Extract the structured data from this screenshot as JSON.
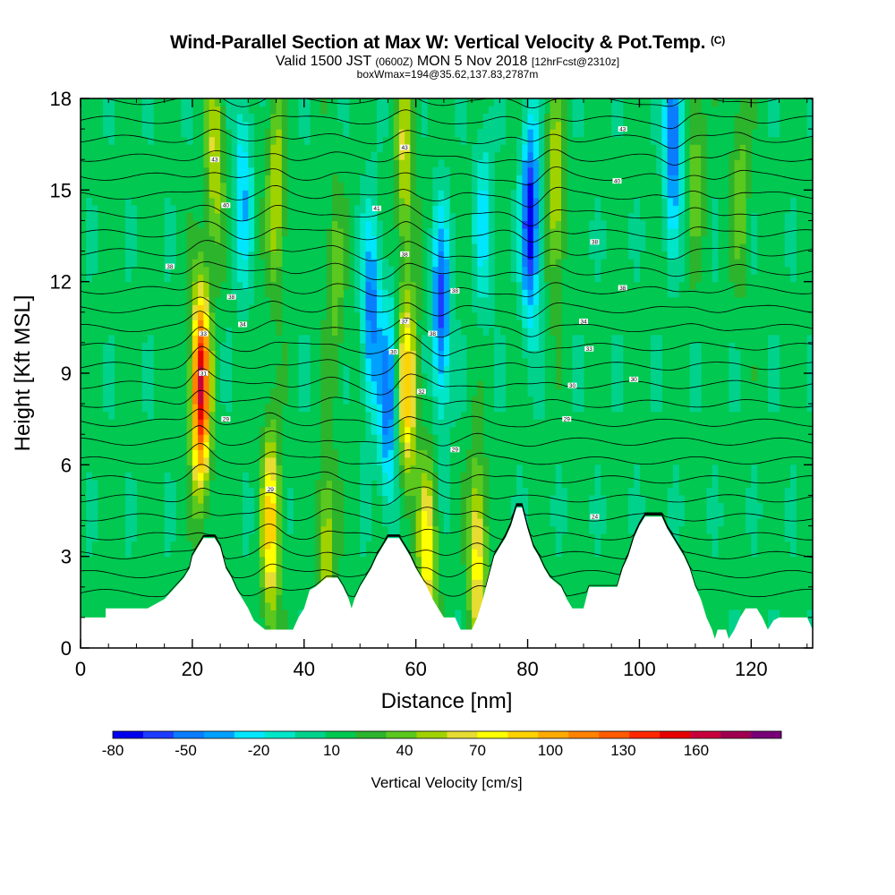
{
  "title": {
    "main": "Wind-Parallel Section at Max W: Vertical Velocity & Pot.Temp.",
    "copyright_mark": "(C)",
    "valid_prefix": "Valid 1500 JST",
    "valid_utc": "(0600Z)",
    "valid_date": "MON 5 Nov 2018",
    "forecast": "[12hrFcst@2310z]",
    "box_info": "boxWmax=194@35.62,137.83,2787m"
  },
  "colors": {
    "palette": [
      "#0000ee",
      "#1e3cff",
      "#0a7dff",
      "#00a0ff",
      "#00e6ff",
      "#00e6c8",
      "#00d28c",
      "#00c850",
      "#2db42d",
      "#5ac81e",
      "#a0d200",
      "#e6dc32",
      "#ffff00",
      "#ffd200",
      "#ffaa00",
      "#ff8200",
      "#ff5a00",
      "#ff2800",
      "#e60000",
      "#c8003c",
      "#a00050",
      "#780078"
    ],
    "terrain": "#ffffff",
    "contour": "#000000"
  },
  "chart_data": {
    "type": "heatmap",
    "description_fields": "vertical velocity (filled) with potential temperature contours",
    "xlabel": "Distance [nm]",
    "ylabel": "Height [Kft MSL]",
    "xlim": [
      0,
      131
    ],
    "ylim": [
      0,
      18
    ],
    "xticks": [
      0,
      20,
      40,
      60,
      80,
      100,
      120
    ],
    "yticks": [
      0,
      3,
      6,
      9,
      12,
      15,
      18
    ],
    "colorbar": {
      "label": "Vertical Velocity [cm/s]",
      "levels_min": -80,
      "levels_max": 180,
      "levels_step": 12.5,
      "tick_labels": [
        "-80",
        "-50",
        "-20",
        "10",
        "40",
        "70",
        "100",
        "130",
        "160"
      ],
      "tick_values": [
        -80,
        -50,
        -20,
        10,
        40,
        70,
        100,
        130,
        160
      ]
    },
    "terrain_height_kft": [
      [
        0,
        1.0
      ],
      [
        4.5,
        1.0
      ],
      [
        4.5,
        1.3
      ],
      [
        12,
        1.3
      ],
      [
        15,
        1.6
      ],
      [
        17,
        2.0
      ],
      [
        18.5,
        2.3
      ],
      [
        19.5,
        2.6
      ],
      [
        20,
        3.0
      ],
      [
        21,
        3.3
      ],
      [
        22,
        3.6
      ],
      [
        24,
        3.6
      ],
      [
        25,
        3.3
      ],
      [
        26,
        2.6
      ],
      [
        27,
        2.3
      ],
      [
        28,
        1.9
      ],
      [
        29,
        1.6
      ],
      [
        30,
        1.3
      ],
      [
        31,
        0.9
      ],
      [
        33,
        0.6
      ],
      [
        38,
        0.6
      ],
      [
        39,
        1.0
      ],
      [
        40,
        1.3
      ],
      [
        41,
        1.9
      ],
      [
        42,
        2.0
      ],
      [
        44,
        2.3
      ],
      [
        46,
        2.3
      ],
      [
        47,
        2.0
      ],
      [
        48,
        1.6
      ],
      [
        48.5,
        1.3
      ],
      [
        49,
        1.6
      ],
      [
        50,
        2.0
      ],
      [
        51,
        2.3
      ],
      [
        52,
        2.6
      ],
      [
        53,
        3.0
      ],
      [
        54,
        3.3
      ],
      [
        55,
        3.6
      ],
      [
        57,
        3.6
      ],
      [
        58,
        3.3
      ],
      [
        59,
        3.0
      ],
      [
        60,
        2.6
      ],
      [
        61,
        2.3
      ],
      [
        62,
        2.0
      ],
      [
        63,
        1.6
      ],
      [
        64,
        1.3
      ],
      [
        65,
        1.0
      ],
      [
        67,
        1.0
      ],
      [
        68,
        0.6
      ],
      [
        70,
        0.6
      ],
      [
        71,
        1.0
      ],
      [
        72,
        1.6
      ],
      [
        73,
        2.3
      ],
      [
        74,
        3.0
      ],
      [
        75,
        3.3
      ],
      [
        76,
        3.6
      ],
      [
        77,
        4.0
      ],
      [
        78,
        4.6
      ],
      [
        79,
        4.6
      ],
      [
        80,
        3.9
      ],
      [
        81,
        3.3
      ],
      [
        82,
        3.0
      ],
      [
        83,
        2.6
      ],
      [
        84,
        2.3
      ],
      [
        86,
        2.0
      ],
      [
        87,
        1.6
      ],
      [
        88,
        1.3
      ],
      [
        90,
        1.3
      ],
      [
        91,
        2.0
      ],
      [
        96,
        2.0
      ],
      [
        97,
        2.6
      ],
      [
        98,
        3.0
      ],
      [
        99,
        3.6
      ],
      [
        100,
        4.0
      ],
      [
        101,
        4.3
      ],
      [
        104,
        4.3
      ],
      [
        105,
        3.9
      ],
      [
        106,
        3.6
      ],
      [
        107,
        3.3
      ],
      [
        108,
        3.0
      ],
      [
        109,
        2.6
      ],
      [
        110,
        2.0
      ],
      [
        111,
        1.6
      ],
      [
        112,
        1.0
      ],
      [
        113,
        0.6
      ],
      [
        113.5,
        0.3
      ],
      [
        114,
        0.6
      ],
      [
        115.5,
        0.6
      ],
      [
        116,
        0.3
      ],
      [
        117,
        0.6
      ],
      [
        118,
        1.0
      ],
      [
        119,
        1.3
      ],
      [
        121,
        1.3
      ],
      [
        122,
        1.0
      ],
      [
        123,
        0.6
      ],
      [
        124,
        0.9
      ],
      [
        125,
        1.0
      ],
      [
        130,
        1.0
      ],
      [
        131,
        0.6
      ]
    ],
    "vertical_velocity_features": [
      {
        "x": 21.5,
        "y": 8.5,
        "value": 160
      },
      {
        "x": 24,
        "y": 16,
        "value": 60
      },
      {
        "x": 29,
        "y": 15,
        "value": -30
      },
      {
        "x": 34,
        "y": 4,
        "value": 90
      },
      {
        "x": 35,
        "y": 15,
        "value": 60
      },
      {
        "x": 44,
        "y": 3,
        "value": 60
      },
      {
        "x": 45.5,
        "y": 12,
        "value": 40
      },
      {
        "x": 52,
        "y": 11,
        "value": -50
      },
      {
        "x": 55,
        "y": 8,
        "value": -50
      },
      {
        "x": 58.5,
        "y": 8.5,
        "value": 90
      },
      {
        "x": 58,
        "y": 16,
        "value": 60
      },
      {
        "x": 62,
        "y": 3,
        "value": 80
      },
      {
        "x": 64.5,
        "y": 11,
        "value": -60
      },
      {
        "x": 71,
        "y": 3,
        "value": 80
      },
      {
        "x": 72,
        "y": 14,
        "value": -20
      },
      {
        "x": 80.5,
        "y": 14,
        "value": -80
      },
      {
        "x": 85,
        "y": 15,
        "value": 60
      },
      {
        "x": 106,
        "y": 17,
        "value": -60
      },
      {
        "x": 110,
        "y": 16,
        "value": 40
      },
      {
        "x": 118,
        "y": 15,
        "value": 40
      }
    ],
    "potential_temperature_labels": [
      {
        "x": 24,
        "y": 16.0,
        "text": "43"
      },
      {
        "x": 26,
        "y": 14.5,
        "text": "40"
      },
      {
        "x": 16,
        "y": 12.5,
        "text": "38"
      },
      {
        "x": 27,
        "y": 11.5,
        "text": "38"
      },
      {
        "x": 29,
        "y": 10.6,
        "text": "34"
      },
      {
        "x": 22,
        "y": 10.3,
        "text": "33"
      },
      {
        "x": 22,
        "y": 9.0,
        "text": "31"
      },
      {
        "x": 26,
        "y": 7.5,
        "text": "29"
      },
      {
        "x": 34,
        "y": 5.2,
        "text": "29"
      },
      {
        "x": 58,
        "y": 16.4,
        "text": "43"
      },
      {
        "x": 53,
        "y": 14.4,
        "text": "41"
      },
      {
        "x": 58,
        "y": 12.9,
        "text": "38"
      },
      {
        "x": 67,
        "y": 11.7,
        "text": "38"
      },
      {
        "x": 58,
        "y": 10.7,
        "text": "37"
      },
      {
        "x": 63,
        "y": 10.3,
        "text": "38"
      },
      {
        "x": 56,
        "y": 9.7,
        "text": "30"
      },
      {
        "x": 61,
        "y": 8.4,
        "text": "32"
      },
      {
        "x": 67,
        "y": 6.5,
        "text": "29"
      },
      {
        "x": 97,
        "y": 17.0,
        "text": "43"
      },
      {
        "x": 96,
        "y": 15.3,
        "text": "40"
      },
      {
        "x": 92,
        "y": 13.3,
        "text": "38"
      },
      {
        "x": 97,
        "y": 11.8,
        "text": "38"
      },
      {
        "x": 90,
        "y": 10.7,
        "text": "34"
      },
      {
        "x": 91,
        "y": 9.8,
        "text": "33"
      },
      {
        "x": 88,
        "y": 8.6,
        "text": "30"
      },
      {
        "x": 99,
        "y": 8.8,
        "text": "30"
      },
      {
        "x": 87,
        "y": 7.5,
        "text": "29"
      },
      {
        "x": 92,
        "y": 4.3,
        "text": "24"
      }
    ]
  }
}
